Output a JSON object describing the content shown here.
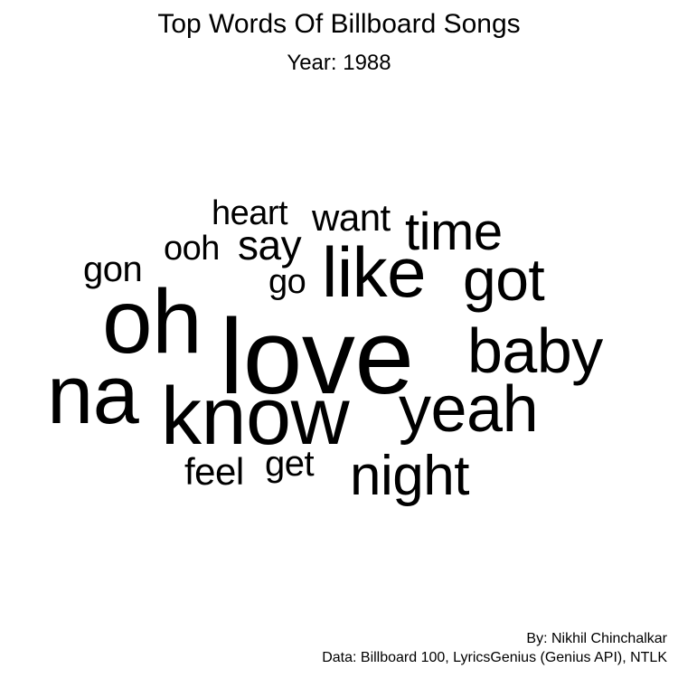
{
  "title": "Top Words Of Billboard Songs",
  "subtitle": "Year: 1988",
  "words": [
    {
      "text": "love"
    },
    {
      "text": "oh"
    },
    {
      "text": "know"
    },
    {
      "text": "na"
    },
    {
      "text": "like"
    },
    {
      "text": "yeah"
    },
    {
      "text": "baby"
    },
    {
      "text": "got"
    },
    {
      "text": "night"
    },
    {
      "text": "time"
    },
    {
      "text": "say"
    },
    {
      "text": "want"
    },
    {
      "text": "heart"
    },
    {
      "text": "ooh"
    },
    {
      "text": "gon"
    },
    {
      "text": "go"
    },
    {
      "text": "get"
    },
    {
      "text": "feel"
    }
  ],
  "caption": {
    "author": "By: Nikhil Chinchalkar",
    "source": "Data: Billboard 100, LyricsGenius (Genius API), NTLK"
  }
}
